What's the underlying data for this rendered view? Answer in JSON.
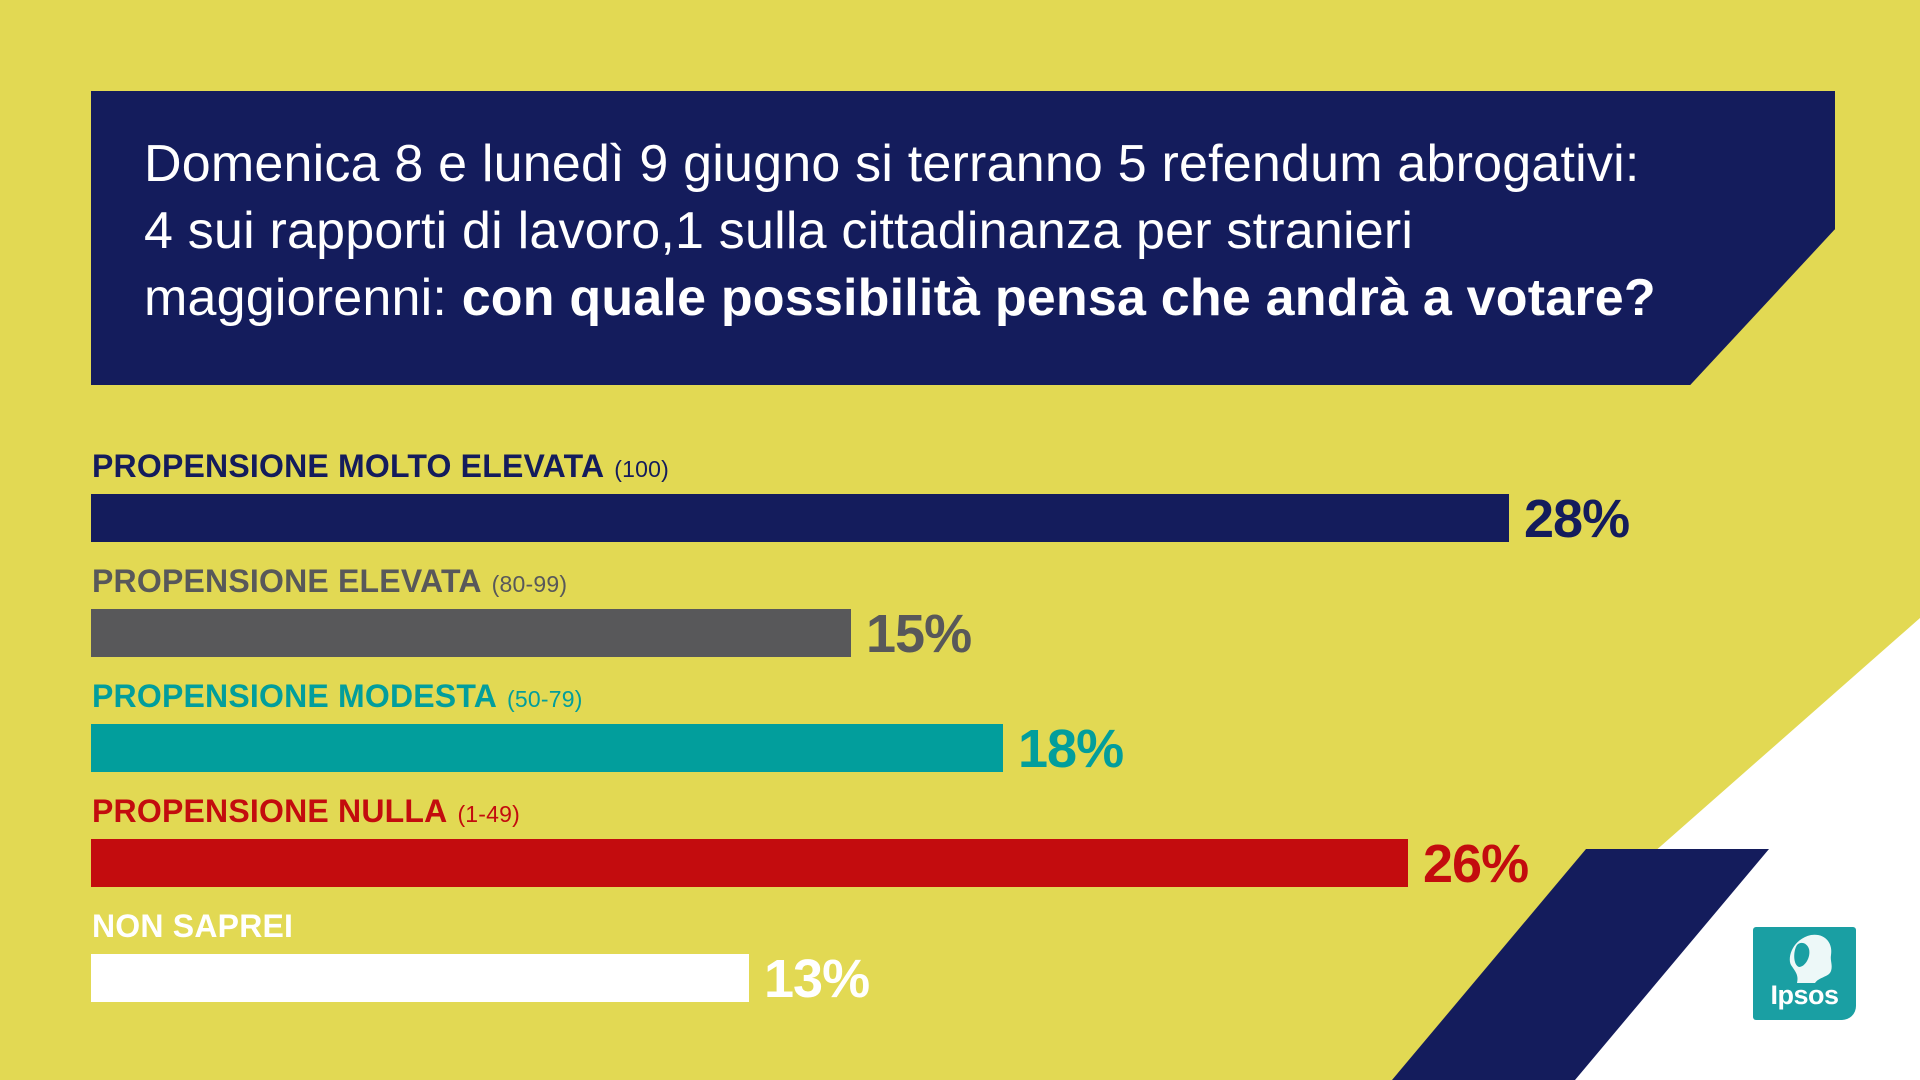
{
  "colors": {
    "background": "#e2d953",
    "navy": "#141c5c",
    "gray": "#58585a",
    "teal": "#029e9c",
    "red": "#c30c0e",
    "white": "#ffffff"
  },
  "question": {
    "line1": "Domenica 8 e lunedì 9 giugno si terranno 5 refendum abrogativi:",
    "line2": "4 sui rapporti di lavoro,1 sulla cittadinanza per stranieri",
    "line3_prefix": "maggiorenni: ",
    "line3_emphasis": "con quale possibilità pensa che andrà a votare?"
  },
  "logo": {
    "text": "Ipsos",
    "icon": "ipsos-head-icon"
  },
  "chart_data": {
    "type": "bar",
    "orientation": "horizontal",
    "title": "Domenica 8 e lunedì 9 giugno si terranno 5 refendum abrogativi: 4 sui rapporti di lavoro,1 sulla cittadinanza per stranieri maggiorenni: con quale possibilità pensa che andrà a votare?",
    "unit": "%",
    "xlim": [
      0,
      28
    ],
    "categories": [
      {
        "label": "PROPENSIONE MOLTO ELEVATA",
        "range": "(100)",
        "value": 28,
        "value_label": "28%",
        "color": "#141c5c"
      },
      {
        "label": "PROPENSIONE ELEVATA",
        "range": "(80-99)",
        "value": 15,
        "value_label": "15%",
        "color": "#58585a"
      },
      {
        "label": "PROPENSIONE MODESTA",
        "range": "(50-79)",
        "value": 18,
        "value_label": "18%",
        "color": "#029e9c"
      },
      {
        "label": "PROPENSIONE NULLA",
        "range": "(1-49)",
        "value": 26,
        "value_label": "26%",
        "color": "#c30c0e"
      },
      {
        "label": "NON  SAPREI",
        "range": "",
        "value": 13,
        "value_label": "13%",
        "color": "#ffffff"
      }
    ]
  }
}
